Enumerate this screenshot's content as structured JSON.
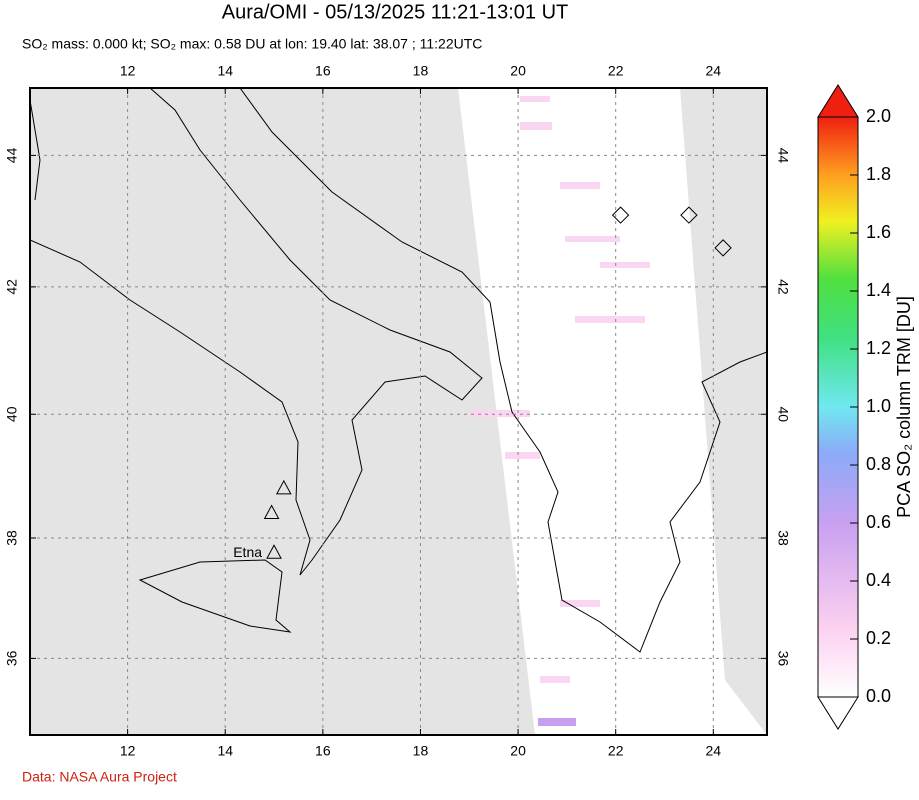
{
  "chart_data": {
    "type": "map",
    "title": "Aura/OMI - 05/13/2025 11:21-13:01 UT",
    "subtitle": "SO₂ mass: 0.000 kt; SO₂ max: 0.58 DU at lon: 19.40 lat: 38.07 ; 11:22UTC",
    "credit": "Data: NASA Aura Project",
    "xlim": [
      10,
      25.1
    ],
    "ylim": [
      34.7,
      45
    ],
    "xticks": [
      12,
      14,
      16,
      18,
      20,
      22,
      24
    ],
    "yticks": [
      36,
      38,
      40,
      42,
      44
    ],
    "grid": true,
    "markers": [
      {
        "shape": "triangle",
        "lon": 15.0,
        "lat": 37.75,
        "label": "Etna"
      },
      {
        "shape": "triangle",
        "lon": 15.2,
        "lat": 38.8
      },
      {
        "shape": "triangle",
        "lon": 14.95,
        "lat": 38.4
      },
      {
        "shape": "diamond",
        "lon": 22.1,
        "lat": 43.1
      },
      {
        "shape": "diamond",
        "lon": 24.2,
        "lat": 42.6
      },
      {
        "shape": "diamond",
        "lon": 23.5,
        "lat": 43.1
      }
    ],
    "colorbar": {
      "label": "PCA SO₂ column TRM [DU]",
      "lim": [
        0,
        2
      ],
      "ticks": [
        {
          "value": 0,
          "label": "0.0"
        },
        0.2,
        0.4,
        0.6,
        0.8,
        {
          "value": 1,
          "label": "1.0"
        },
        1.2,
        1.4,
        1.6,
        1.8,
        {
          "value": 2,
          "label": "2.0"
        }
      ]
    }
  }
}
